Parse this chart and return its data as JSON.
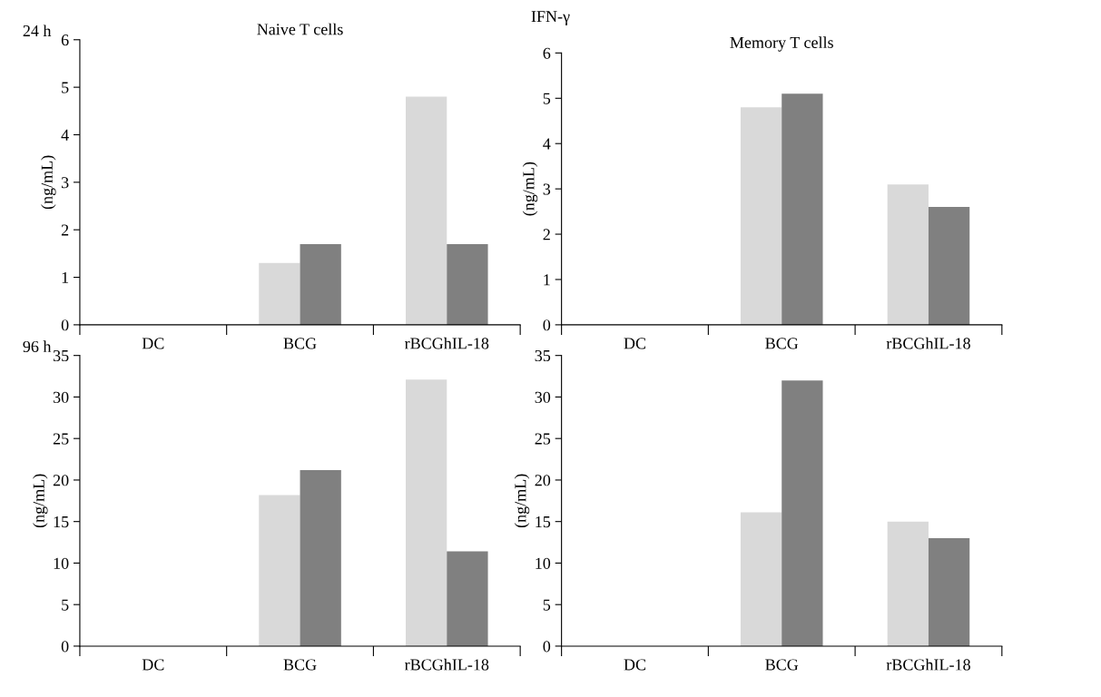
{
  "chart_data": [
    {
      "type": "bar",
      "title": "Naive T cells",
      "ylabel": "(ng/mL)",
      "annotations": [
        "24 h",
        "IFN-γ"
      ],
      "categories": [
        "DC",
        "BCG",
        "rBCGhIL-18"
      ],
      "series": [
        {
          "color": "#d9d9d9",
          "values": [
            0,
            1.3,
            4.8
          ]
        },
        {
          "color": "#808080",
          "values": [
            0,
            1.7,
            1.7
          ]
        }
      ],
      "ylim": [
        0,
        6
      ],
      "yticks": [
        0,
        1,
        2,
        3,
        4,
        5,
        6
      ],
      "grid": false,
      "legend": false
    },
    {
      "type": "bar",
      "title": "Memory T cells",
      "ylabel": "(ng/mL)",
      "categories": [
        "DC",
        "BCG",
        "rBCGhIL-18"
      ],
      "series": [
        {
          "color": "#d9d9d9",
          "values": [
            0,
            4.8,
            3.1
          ]
        },
        {
          "color": "#808080",
          "values": [
            0,
            5.1,
            2.6
          ]
        }
      ],
      "ylim": [
        0,
        6
      ],
      "yticks": [
        0,
        1,
        2,
        3,
        4,
        5,
        6
      ],
      "grid": false,
      "legend": false
    },
    {
      "type": "bar",
      "ylabel": "(ng/mL)",
      "annotations": [
        "96 h"
      ],
      "categories": [
        "DC",
        "BCG",
        "rBCGhIL-18"
      ],
      "series": [
        {
          "color": "#d9d9d9",
          "values": [
            0,
            18.2,
            32.1
          ]
        },
        {
          "color": "#808080",
          "values": [
            0,
            21.2,
            11.4
          ]
        }
      ],
      "ylim": [
        0,
        35
      ],
      "yticks": [
        0,
        5,
        10,
        15,
        20,
        25,
        30,
        35
      ],
      "grid": false,
      "legend": false
    },
    {
      "type": "bar",
      "ylabel": "(ng/mL)",
      "categories": [
        "DC",
        "BCG",
        "rBCGhIL-18"
      ],
      "series": [
        {
          "color": "#d9d9d9",
          "values": [
            0,
            16.1,
            15.0
          ]
        },
        {
          "color": "#808080",
          "values": [
            0,
            32.0,
            13.0
          ]
        }
      ],
      "ylim": [
        0,
        35
      ],
      "yticks": [
        0,
        5,
        10,
        15,
        20,
        25,
        30,
        35
      ],
      "grid": false,
      "legend": false
    }
  ]
}
